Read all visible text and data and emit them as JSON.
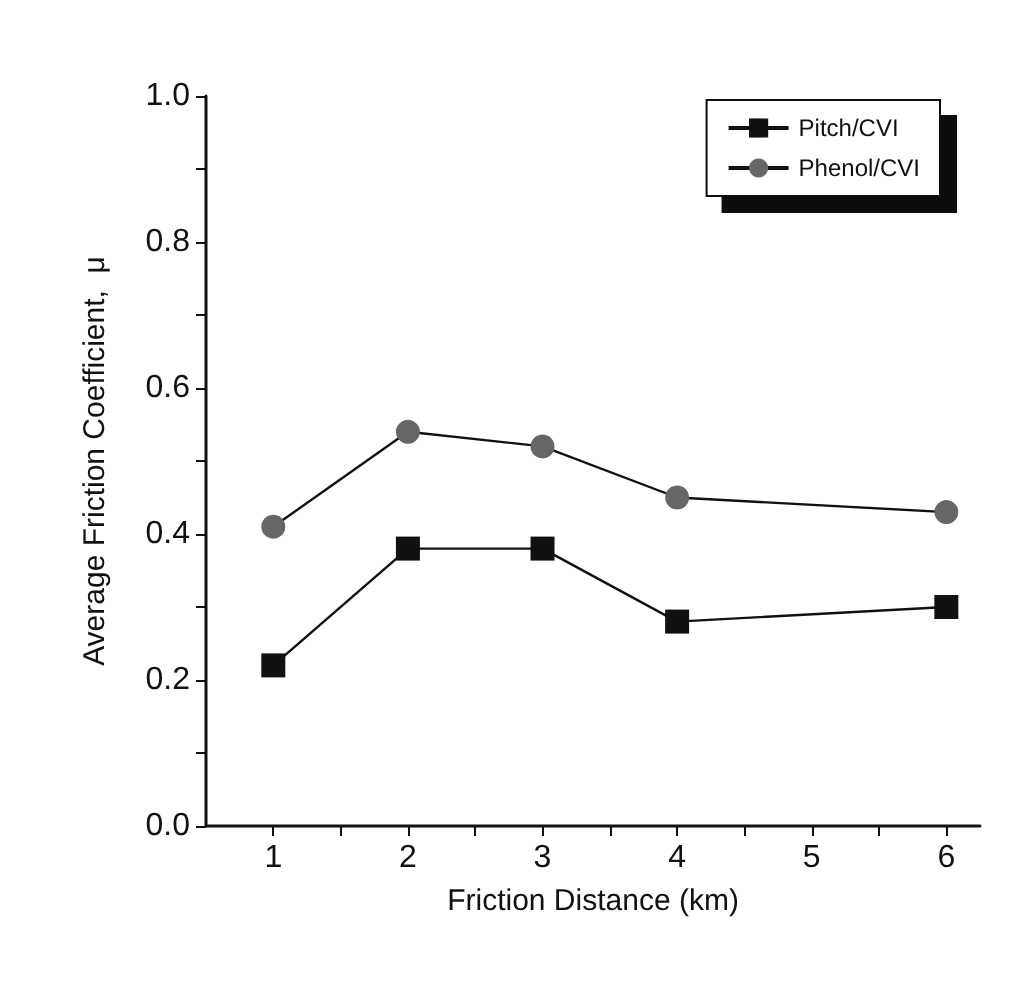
{
  "chart_data": {
    "type": "line",
    "xlabel": "Friction Distance (km)",
    "ylabel": "Average Friction Coefficient,  μ",
    "xlim": [
      0.5,
      6.25
    ],
    "xticks": [
      1,
      {
        "value": 1.5,
        "label": null
      },
      2,
      {
        "value": 2.5,
        "label": null
      },
      3,
      {
        "value": 3.5,
        "label": null
      },
      4,
      {
        "value": 4.5,
        "label": null
      },
      5,
      {
        "value": 5.5,
        "label": null
      },
      6
    ],
    "ylim": [
      0,
      1
    ],
    "yticks": [
      {
        "value": 0,
        "label": "0.0"
      },
      {
        "value": 0.1,
        "label": null
      },
      0.2,
      {
        "value": 0.3,
        "label": null
      },
      0.4,
      {
        "value": 0.5,
        "label": null
      },
      0.6,
      {
        "value": 0.7,
        "label": null
      },
      0.8,
      {
        "value": 0.9,
        "label": null
      },
      {
        "value": 1,
        "label": "1.0"
      }
    ],
    "x": [
      1,
      2,
      3,
      4,
      6
    ],
    "series": [
      {
        "name": "Pitch/CVI",
        "color": "#111111",
        "marker": "square",
        "values": [
          0.22,
          0.38,
          0.38,
          0.28,
          0.3
        ]
      },
      {
        "name": "Phenol/CVI",
        "color": "#666666",
        "marker": "circle",
        "values": [
          0.41,
          0.54,
          0.52,
          0.45,
          0.43
        ]
      }
    ],
    "legend": "top right",
    "grid": false,
    "line_style": "solid"
  }
}
